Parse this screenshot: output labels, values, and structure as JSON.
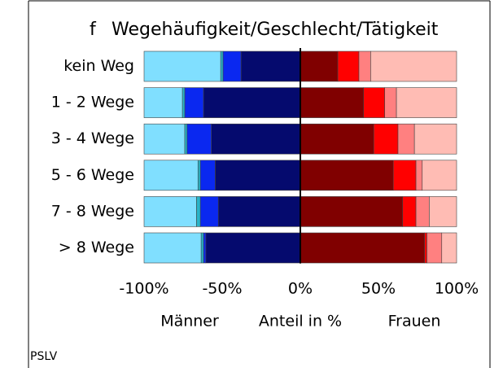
{
  "chart_data": {
    "type": "diverging_stacked_bar",
    "orientation": "horizontal",
    "panel_label": "f",
    "title": "Wegehäufigkeit/Geschlecht/Tätigkeit",
    "categories": [
      "kein Weg",
      "1 - 2 Wege",
      "3 - 4 Wege",
      "5 - 6 Wege",
      "7 - 8 Wege",
      "> 8 Wege"
    ],
    "series": [
      {
        "color": "#050a6e",
        "values": [
          -38,
          -62,
          -57,
          -54.5,
          -52.5,
          -60.5
        ]
      },
      {
        "color": "#0a28f0",
        "values": [
          -11.5,
          -12,
          -15.5,
          -9.5,
          -11.5,
          -1.5
        ]
      },
      {
        "color": "#28b4c8",
        "values": [
          -1.5,
          -1.5,
          -1.5,
          -1.5,
          -2.5,
          -1.5
        ]
      },
      {
        "color": "#80dfff",
        "values": [
          -49,
          -24.5,
          -26,
          -34.5,
          -33.5,
          -36.5
        ]
      },
      {
        "color": "#800000",
        "values": [
          24,
          40.5,
          47,
          59.5,
          65.5,
          79.5
        ]
      },
      {
        "color": "#ff0000",
        "values": [
          13.5,
          13.5,
          15.5,
          14.5,
          8.5,
          1.5
        ]
      },
      {
        "color": "#ff8080",
        "values": [
          7.5,
          7.5,
          10.5,
          4,
          8.5,
          9.5
        ]
      },
      {
        "color": "#ffbcb4",
        "values": [
          55,
          38.5,
          27,
          22,
          17.5,
          9.5
        ]
      }
    ],
    "xlim": [
      -100,
      100
    ],
    "xticks": [
      {
        "value": -100,
        "label": "-100%"
      },
      {
        "value": -50,
        "label": "-50%"
      },
      {
        "value": 0,
        "label": "0%"
      },
      {
        "value": 50,
        "label": "50%"
      },
      {
        "value": 100,
        "label": "100%"
      }
    ],
    "x_labels": [
      "Männer",
      "Anteil in %",
      "Frauen"
    ],
    "footer": "PSLV"
  }
}
